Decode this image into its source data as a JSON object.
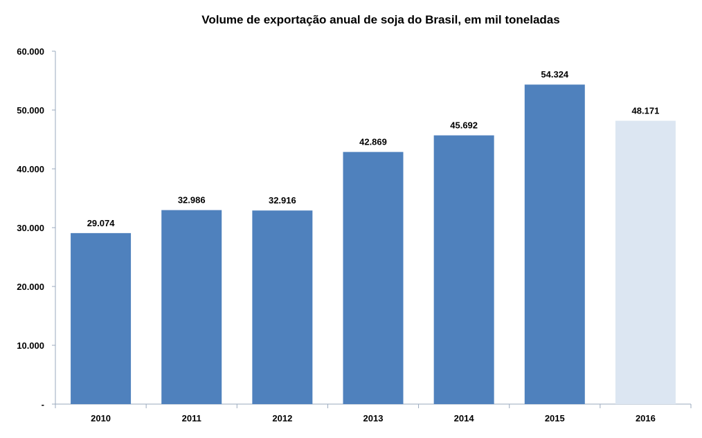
{
  "chart_data": {
    "type": "bar",
    "title": "Volume de exportação anual de soja do Brasil, em mil toneladas",
    "xlabel": "",
    "ylabel": "",
    "categories": [
      "2010",
      "2011",
      "2012",
      "2013",
      "2014",
      "2015",
      "2016"
    ],
    "values": [
      29074,
      32986,
      32916,
      42869,
      45692,
      54324,
      48171
    ],
    "value_labels": [
      "29.074",
      "32.986",
      "32.916",
      "42.869",
      "45.692",
      "54.324",
      "48.171"
    ],
    "bar_colors": [
      "#4f81bd",
      "#4f81bd",
      "#4f81bd",
      "#4f81bd",
      "#4f81bd",
      "#4f81bd",
      "#dce6f2"
    ],
    "ylim": [
      0,
      60000
    ],
    "y_ticks": [
      0,
      10000,
      20000,
      30000,
      40000,
      50000,
      60000
    ],
    "y_tick_labels": [
      "-",
      "10.000",
      "20.000",
      "30.000",
      "40.000",
      "50.000",
      "60.000"
    ],
    "grid": false,
    "legend": "none"
  }
}
